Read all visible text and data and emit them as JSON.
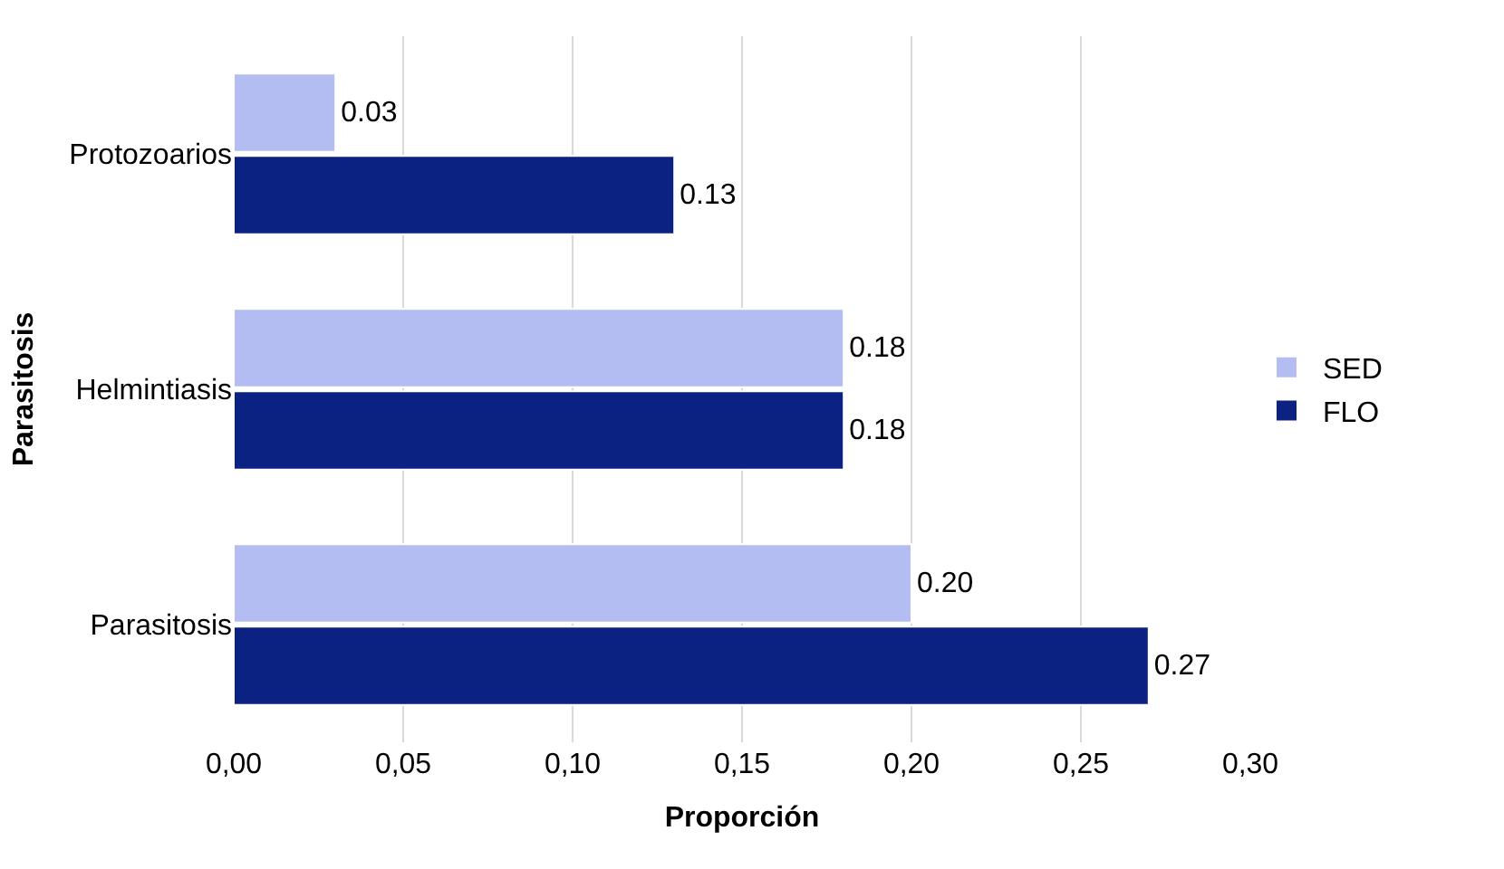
{
  "chart_data": {
    "type": "bar",
    "orientation": "horizontal",
    "xlabel": "Proporción",
    "ylabel": "Parasitosis",
    "categories": [
      "Protozoarios",
      "Helmintiasis",
      "Parasitosis"
    ],
    "series": [
      {
        "name": "SED",
        "color": "#b3bdf2",
        "values": [
          0.03,
          0.18,
          0.2
        ],
        "value_labels": [
          "0.03",
          "0.18",
          "0.20"
        ]
      },
      {
        "name": "FLO",
        "color": "#0c2282",
        "values": [
          0.13,
          0.18,
          0.27
        ],
        "value_labels": [
          "0.13",
          "0.18",
          "0.27"
        ]
      }
    ],
    "xlim": [
      0,
      0.3
    ],
    "xticks": [
      {
        "value": 0,
        "label": "0,00"
      },
      {
        "value": 0.05,
        "label": "0,05"
      },
      {
        "value": 0.1,
        "label": "0,10"
      },
      {
        "value": 0.15,
        "label": "0,15"
      },
      {
        "value": 0.2,
        "label": "0,20"
      },
      {
        "value": 0.25,
        "label": "0,25"
      },
      {
        "value": 0.3,
        "label": "0,30"
      }
    ],
    "grid": "x",
    "legend": "right"
  }
}
